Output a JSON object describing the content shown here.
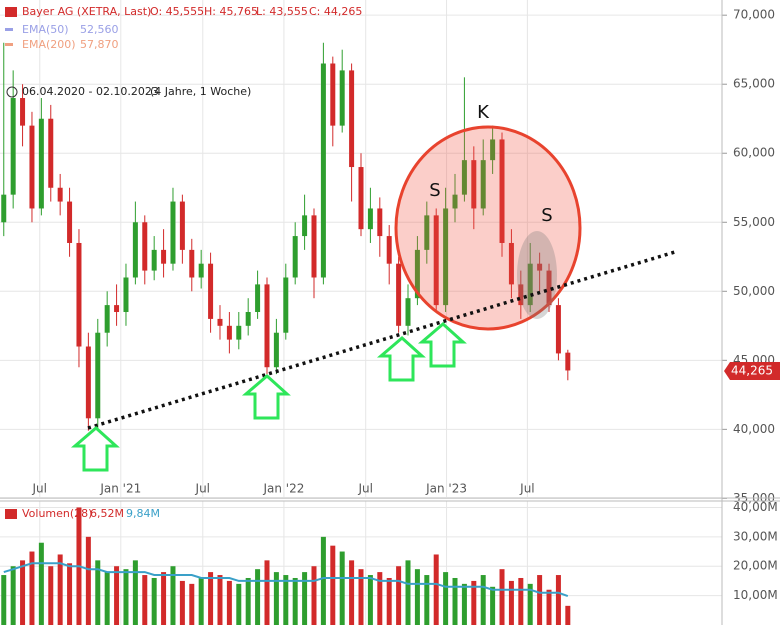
{
  "chart_data": {
    "type": "candlestick",
    "legend": {
      "name": "Bayer AG (XETRA, Last)",
      "o": "O: 45,555",
      "h": "H: 45,765",
      "l": "L: 43,555",
      "c": "C: 44,265",
      "indicators": [
        {
          "name": "EMA(50)",
          "value": "52,560",
          "color": "#9aa0e6"
        },
        {
          "name": "EMA(200)",
          "value": "57,870",
          "color": "#f0a080"
        }
      ],
      "range": "06.04.2020 - 02.10.2023",
      "duration": "(4 Jahre, 1 Woche)"
    },
    "annotations": [
      "K",
      "S",
      "S"
    ],
    "last_price_label": "44,265",
    "up_color": "#2e9e2e",
    "down_color": "#d22a2a",
    "xlim": [
      -0.4,
      76.4
    ],
    "xticks": [
      {
        "value": 3.83,
        "label": "Jul"
      },
      {
        "value": 12.45,
        "label": "Jan '21"
      },
      {
        "value": 21.17,
        "label": "Jul"
      },
      {
        "value": 29.8,
        "label": "Jan '22"
      },
      {
        "value": 38.5,
        "label": "Jul"
      },
      {
        "value": 47.1,
        "label": "Jan '23"
      },
      {
        "value": 55.7,
        "label": "Jul"
      }
    ],
    "ylim": [
      35100,
      71100
    ],
    "yticks": [
      {
        "value": 35000,
        "label": "35,000"
      },
      {
        "value": 40000,
        "label": "40,000"
      },
      {
        "value": 45000,
        "label": "45,000"
      },
      {
        "value": 50000,
        "label": "50,000"
      },
      {
        "value": 55000,
        "label": "55,000"
      },
      {
        "value": 60000,
        "label": "60,000"
      },
      {
        "value": 65000,
        "label": "65,000"
      },
      {
        "value": 70000,
        "label": "70,000"
      }
    ],
    "open": [
      55000,
      57000,
      64000,
      62000,
      56000,
      62500,
      57500,
      56500,
      53500,
      46000,
      40800,
      47000,
      49000,
      48500,
      51000,
      55000,
      51500,
      53000,
      52000,
      56500,
      53000,
      51000,
      52000,
      48000,
      47500,
      46500,
      47500,
      48500,
      50500,
      44500,
      47000,
      51000,
      54000,
      55500,
      51000,
      66500,
      62000,
      66000,
      59000,
      54500,
      56000,
      54000,
      52000,
      47500,
      49500,
      53000,
      55500,
      49000,
      56000,
      57000,
      59500,
      56000,
      59500,
      61000,
      53500,
      50500,
      49000,
      52000,
      51500,
      49000,
      45555
    ],
    "high": [
      68000,
      66000,
      65000,
      63000,
      64000,
      63500,
      58500,
      57500,
      54500,
      47000,
      48000,
      50000,
      50500,
      52000,
      56500,
      55500,
      54000,
      54500,
      57500,
      57000,
      53800,
      53000,
      52800,
      49000,
      48500,
      48500,
      49500,
      51500,
      51000,
      48000,
      52000,
      55000,
      57000,
      56000,
      68000,
      67000,
      67500,
      66500,
      60000,
      57500,
      56800,
      54800,
      52500,
      50500,
      54000,
      56500,
      56000,
      57500,
      58500,
      65500,
      60500,
      61000,
      62000,
      61500,
      54500,
      51500,
      53500,
      52800,
      52000,
      49500,
      45765
    ],
    "low": [
      54000,
      56000,
      60500,
      55000,
      55500,
      56500,
      55500,
      52500,
      44500,
      39900,
      40000,
      46000,
      47500,
      47500,
      50500,
      50500,
      50800,
      51000,
      51500,
      52000,
      50000,
      50200,
      47000,
      46500,
      45500,
      45800,
      46800,
      48000,
      44000,
      44000,
      46500,
      50500,
      53000,
      49500,
      50500,
      60500,
      61500,
      56500,
      54000,
      53500,
      52500,
      50500,
      47000,
      46800,
      49000,
      52000,
      48500,
      48500,
      55000,
      56500,
      54500,
      55500,
      58500,
      52500,
      49500,
      48000,
      48500,
      50000,
      48500,
      45000,
      43555
    ],
    "close": [
      57000,
      64000,
      62000,
      56000,
      62500,
      57500,
      56500,
      53500,
      46000,
      40800,
      47000,
      49000,
      48500,
      51000,
      55000,
      51500,
      53000,
      52000,
      56500,
      53000,
      51000,
      52000,
      48000,
      47500,
      46500,
      47500,
      48500,
      50500,
      44500,
      47000,
      51000,
      54000,
      55500,
      51000,
      66500,
      62000,
      66000,
      59000,
      54500,
      56000,
      54000,
      52000,
      47500,
      49500,
      53000,
      55500,
      49000,
      56000,
      57000,
      59500,
      56000,
      59500,
      61000,
      53500,
      50500,
      49000,
      52000,
      51500,
      49000,
      45500,
      44265
    ],
    "volume": {
      "legend": {
        "name": "Volumen(28)",
        "value": "6,52M",
        "avg": "9,84M"
      },
      "ylim": [
        0,
        42.2
      ],
      "yticks": [
        {
          "value": 10,
          "label": "10,00M"
        },
        {
          "value": 20,
          "label": "20,00M"
        },
        {
          "value": 30,
          "label": "30,00M"
        },
        {
          "value": 40,
          "label": "40,00M"
        }
      ],
      "values": [
        17,
        20,
        22,
        25,
        28,
        20,
        24,
        21,
        40,
        30,
        22,
        18,
        20,
        19,
        22,
        17,
        16,
        18,
        20,
        15,
        14,
        16,
        18,
        17,
        15,
        14,
        16,
        19,
        22,
        18,
        17,
        16,
        18,
        20,
        30,
        27,
        25,
        22,
        19,
        17,
        18,
        16,
        20,
        22,
        19,
        17,
        24,
        18,
        16,
        14,
        15,
        17,
        13,
        19,
        15,
        16,
        14,
        17,
        12,
        17,
        6.52
      ],
      "avg_color": "#3aa0c8",
      "avg": [
        18,
        19,
        20,
        21,
        21,
        21,
        21,
        20,
        20,
        19,
        19,
        18,
        18,
        18,
        18,
        18,
        17,
        17,
        17,
        17,
        17,
        16,
        16,
        16,
        16,
        15,
        15,
        15,
        15,
        15,
        15,
        15,
        15,
        15,
        16,
        16,
        16,
        16,
        16,
        16,
        15,
        15,
        15,
        14,
        14,
        14,
        14,
        13,
        13,
        13,
        13,
        13,
        12,
        12,
        12,
        12,
        12,
        11,
        11,
        11,
        9.84
      ]
    }
  }
}
